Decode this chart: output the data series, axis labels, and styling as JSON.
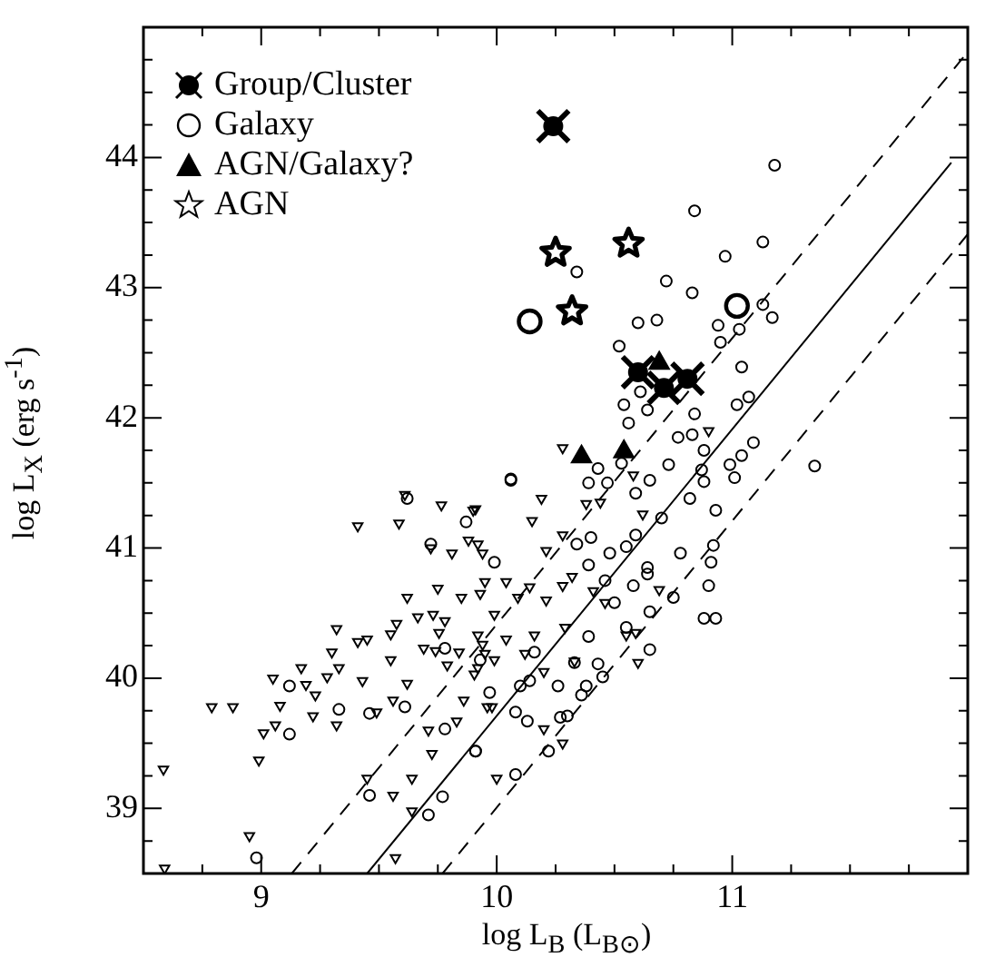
{
  "chart_data": {
    "type": "scatter",
    "xlabel": "log L$_{B}$ (L$_{B⊙}$)",
    "ylabel": "log L$_{X}$ (erg s$^{-1}$)",
    "xlim": [
      8.5,
      12
    ],
    "ylim": [
      38.5,
      45
    ],
    "xticks": [
      {
        "value": 8.5,
        "label": null
      },
      {
        "value": 8.75,
        "label": null
      },
      9,
      {
        "value": 9.25,
        "label": null
      },
      {
        "value": 9.5,
        "label": null
      },
      {
        "value": 9.75,
        "label": null
      },
      10,
      {
        "value": 10.25,
        "label": null
      },
      {
        "value": 10.5,
        "label": null
      },
      {
        "value": 10.75,
        "label": null
      },
      11,
      {
        "value": 11.25,
        "label": null
      },
      {
        "value": 11.5,
        "label": null
      },
      {
        "value": 11.75,
        "label": null
      },
      {
        "value": 12,
        "label": null
      }
    ],
    "yticks": [
      {
        "value": 38.5,
        "label": null
      },
      {
        "value": 38.75,
        "label": null
      },
      39,
      {
        "value": 39.25,
        "label": null
      },
      {
        "value": 39.5,
        "label": null
      },
      {
        "value": 39.75,
        "label": null
      },
      40,
      {
        "value": 40.25,
        "label": null
      },
      {
        "value": 40.5,
        "label": null
      },
      {
        "value": 40.75,
        "label": null
      },
      41,
      {
        "value": 41.25,
        "label": null
      },
      {
        "value": 41.5,
        "label": null
      },
      {
        "value": 41.75,
        "label": null
      },
      42,
      {
        "value": 42.25,
        "label": null
      },
      {
        "value": 42.5,
        "label": null
      },
      {
        "value": 42.75,
        "label": null
      },
      43,
      {
        "value": 43.25,
        "label": null
      },
      {
        "value": 43.5,
        "label": null
      },
      {
        "value": 43.75,
        "label": null
      },
      44,
      {
        "value": 44.25,
        "label": null
      },
      {
        "value": 44.5,
        "label": null
      },
      {
        "value": 44.75,
        "label": null
      },
      {
        "value": 45,
        "label": null
      }
    ],
    "grid": false,
    "legend": "top left",
    "series": [
      {
        "name": "Group/Cluster",
        "color": "#000000",
        "x": [
          10.24,
          10.6,
          10.71,
          10.81
        ],
        "values": [
          44.24,
          42.35,
          42.23,
          42.3
        ]
      },
      {
        "name": "Galaxy",
        "marker": "circle",
        "color": "#000000",
        "x": [
          10.14,
          11.02
        ],
        "values": [
          42.74,
          42.86
        ]
      },
      {
        "name": "AGN/Galaxy?",
        "marker": "triangle",
        "color": "#000000",
        "x": [
          10.36,
          10.54,
          10.69
        ],
        "values": [
          41.7,
          41.74,
          42.42
        ]
      },
      {
        "name": "AGN",
        "marker": "star",
        "color": "#000000",
        "x": [
          10.25,
          10.56,
          10.32
        ],
        "values": [
          43.28,
          43.35,
          42.83
        ]
      },
      {
        "marker": "circle",
        "color": "#000000",
        "x": [
          11.18,
          10.84,
          11.13,
          10.97,
          10.34,
          10.72,
          10.83,
          10.6,
          10.68,
          10.94,
          11.17,
          11.13,
          11.03,
          10.95,
          10.52,
          11.04,
          10.61,
          10.54,
          10.64,
          10.84,
          11.02,
          11.07,
          10.56,
          10.77,
          10.83,
          10.88,
          11.04,
          11.09,
          10.06,
          10.43,
          10.53,
          10.73,
          10.99,
          11.35,
          10.87,
          9.12,
          9.12,
          9.33,
          9.46,
          9.46,
          8.98,
          9.72,
          9.71,
          9.77,
          9.78,
          9.87,
          9.78,
          9.91,
          9.62,
          9.61,
          10.06,
          10.39,
          10.47,
          10.65,
          10.59,
          10.82,
          10.88,
          11.01,
          10.93,
          10.7,
          10.4,
          10.59,
          10.55,
          10.48,
          10.34,
          10.78,
          10.91,
          10.64,
          10.64,
          10.9,
          10.58,
          10.46,
          10.39,
          10.75,
          10.65,
          10.55,
          10.65,
          10.5,
          10.39,
          10.33,
          10.43,
          10.45,
          10.38,
          10.36,
          10.26,
          10.14,
          10.1,
          10.08,
          10.13,
          10.27,
          10.3,
          10.22,
          9.91,
          10.08,
          10.88,
          10.93,
          10.92,
          10.16,
          9.99,
          9.93,
          9.97
        ],
        "values": [
          43.94,
          43.59,
          43.35,
          43.24,
          43.12,
          43.05,
          42.96,
          42.73,
          42.75,
          42.71,
          42.77,
          42.87,
          42.68,
          42.58,
          42.55,
          42.39,
          42.2,
          42.1,
          42.06,
          42.03,
          42.1,
          42.16,
          41.96,
          41.85,
          41.87,
          41.75,
          41.71,
          41.81,
          41.53,
          41.61,
          41.65,
          41.64,
          41.64,
          41.63,
          41.6,
          39.57,
          39.94,
          39.76,
          39.1,
          39.73,
          38.62,
          41.03,
          38.95,
          39.09,
          39.61,
          41.2,
          40.23,
          39.44,
          41.38,
          39.78,
          41.52,
          41.5,
          41.5,
          41.52,
          41.42,
          41.38,
          41.51,
          41.54,
          41.29,
          41.23,
          41.08,
          41.1,
          41.01,
          40.96,
          41.03,
          40.96,
          40.89,
          40.85,
          40.8,
          40.71,
          40.71,
          40.75,
          40.87,
          40.62,
          40.51,
          40.39,
          40.22,
          40.58,
          40.32,
          40.12,
          40.11,
          40.01,
          39.94,
          39.87,
          39.94,
          39.98,
          39.94,
          39.74,
          39.67,
          39.7,
          39.71,
          39.44,
          39.44,
          39.26,
          40.46,
          40.46,
          41.02,
          40.2,
          40.89,
          40.14,
          39.89
        ]
      },
      {
        "marker": "triangle",
        "color": "#000000",
        "x": [
          10.28,
          10.9,
          10.58,
          8.585,
          8.59,
          8.95,
          8.79,
          8.88,
          8.99,
          9.01,
          9.06,
          9.08,
          9.05,
          9.17,
          9.19,
          9.22,
          9.23,
          9.28,
          9.32,
          9.33,
          9.3,
          9.32,
          9.41,
          9.45,
          9.41,
          9.45,
          9.43,
          9.49,
          9.55,
          9.55,
          9.56,
          9.56,
          9.57,
          9.575,
          9.585,
          9.61,
          9.62,
          9.62,
          9.64,
          9.64,
          9.665,
          9.69,
          9.71,
          9.72,
          9.725,
          9.73,
          9.74,
          9.75,
          9.755,
          9.765,
          9.78,
          9.79,
          9.81,
          9.83,
          9.84,
          9.85,
          9.86,
          9.88,
          9.9,
          9.905,
          9.92,
          9.93,
          9.94,
          9.95,
          9.96,
          10.19,
          9.91,
          10.15,
          10.38,
          10.44,
          10.28,
          9.92,
          10.21,
          10.04,
          10.14,
          10.28,
          9.95,
          10.32,
          10.41,
          10.09,
          9.99,
          10.21,
          10.62,
          10.69,
          10.55,
          10.59,
          10.46,
          10.29,
          10.16,
          10.04,
          9.94,
          10.12,
          10.33,
          10.2,
          9.99,
          9.92,
          9.98,
          10.2,
          10.28,
          10,
          10.6
        ],
        "values": [
          41.77,
          41.9,
          41.56,
          39.3,
          38.54,
          38.79,
          39.78,
          39.78,
          39.37,
          39.58,
          39.64,
          39.79,
          40,
          40.08,
          39.95,
          39.71,
          39.87,
          40.01,
          39.64,
          40.08,
          40.2,
          40.38,
          40.28,
          40.3,
          41.17,
          39.23,
          39.98,
          39.74,
          40.34,
          40.14,
          39.83,
          39.1,
          38.62,
          40.42,
          41.19,
          41.41,
          40.62,
          39.96,
          39.23,
          38.98,
          40.47,
          40.23,
          39.6,
          41,
          39.42,
          40.49,
          40.21,
          40.69,
          40.35,
          41.33,
          40.44,
          40.1,
          40.96,
          39.67,
          40.2,
          40.62,
          39.83,
          41.06,
          41.29,
          40.03,
          40.33,
          40.65,
          40.96,
          40.19,
          39.78,
          41.38,
          41.3,
          41.21,
          41.34,
          41.35,
          41.1,
          41.03,
          40.98,
          40.74,
          40.7,
          40.71,
          40.74,
          40.78,
          40.67,
          40.62,
          40.49,
          40.6,
          41.26,
          40.68,
          40.33,
          40.35,
          40.58,
          40.39,
          40.33,
          40.3,
          40.26,
          40.19,
          40.13,
          40.05,
          40.14,
          40.08,
          39.78,
          39.61,
          39.5,
          39.23,
          40.12
        ]
      },
      {
        "type": "line",
        "line_style": "solid",
        "marker": "none",
        "color": "#000000",
        "x": [
          9.45,
          11.93
        ],
        "values": [
          38.5,
          43.96
        ]
      },
      {
        "type": "line",
        "line_style": "dashed",
        "marker": "none",
        "color": "#000000",
        "x": [
          9.13,
          12
        ],
        "values": [
          38.5,
          44.81
        ]
      },
      {
        "type": "line",
        "line_style": "dashed",
        "marker": "none",
        "color": "#000000",
        "x": [
          9.77,
          12
        ],
        "values": [
          38.5,
          43.41
        ]
      }
    ]
  }
}
